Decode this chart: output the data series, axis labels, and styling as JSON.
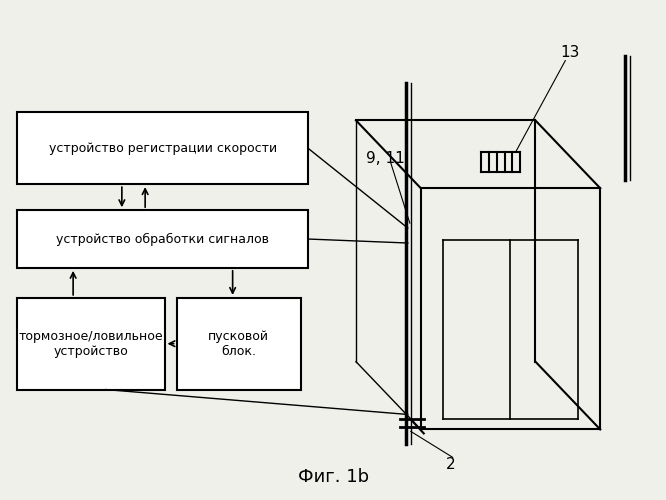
{
  "background_color": "#f0f0eb",
  "title_text": "Фиг. 1b",
  "box1_label": "устройство регистрации скорости",
  "box2_label": "устройство обработки сигналов",
  "box3_label": "тормозное/ловильное\nустройство",
  "box4_label": "пусковой\nблок.",
  "label_9_11": "9, 11",
  "label_13": "13",
  "label_2": "2",
  "line_color": "#000000",
  "box_edge_color": "#000000",
  "text_color": "#000000",
  "font_size": 9,
  "font_size_label": 11
}
